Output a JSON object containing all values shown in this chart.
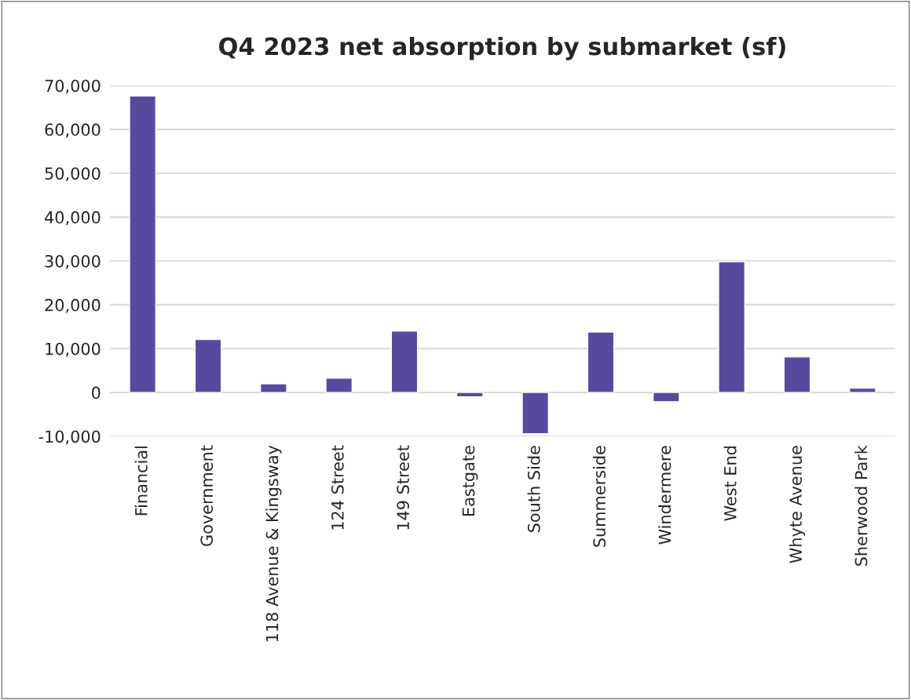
{
  "chart_data": {
    "type": "bar",
    "title": "Q4 2023 net absorption by submarket (sf)",
    "categories": [
      "Financial",
      "Government",
      "118 Avenue & Kingsway",
      "124 Street",
      "149 Street",
      "Eastgate",
      "South Side",
      "Summerside",
      "Windermere",
      "West End",
      "Whyte Avenue",
      "Sherwood Park"
    ],
    "values": [
      67600,
      12100,
      2000,
      3300,
      14000,
      -1000,
      -9400,
      13800,
      -2100,
      29800,
      8100,
      1000
    ],
    "color": "#574a9e",
    "ylim": [
      -10000,
      70000
    ],
    "yticks": [
      {
        "value": -10000,
        "label": "-10,000"
      },
      {
        "value": 0,
        "label": "0"
      },
      {
        "value": 10000,
        "label": "10,000"
      },
      {
        "value": 20000,
        "label": "20,000"
      },
      {
        "value": 30000,
        "label": "30,000"
      },
      {
        "value": 40000,
        "label": "40,000"
      },
      {
        "value": 50000,
        "label": "50,000"
      },
      {
        "value": 60000,
        "label": "60,000"
      },
      {
        "value": 70000,
        "label": "70,000"
      }
    ],
    "grid": "y",
    "legend": false
  }
}
